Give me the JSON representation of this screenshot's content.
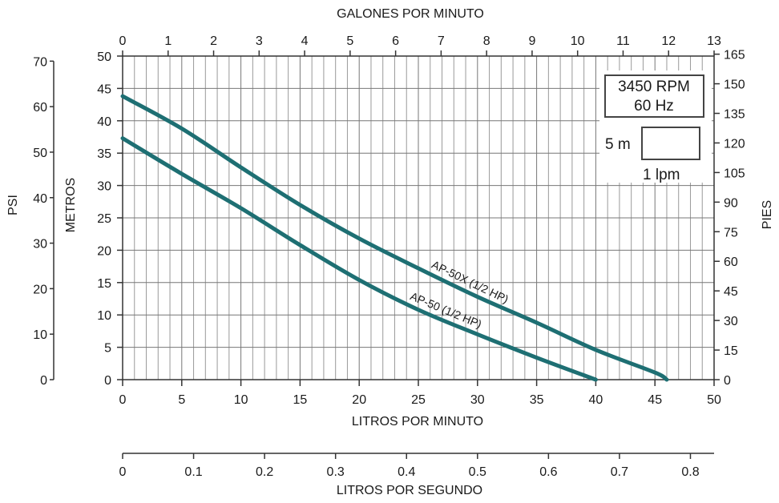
{
  "chart_data": {
    "type": "line",
    "title": "",
    "x_axes": {
      "bottom": {
        "label": "LITROS POR MINUTO",
        "range": [
          0,
          50
        ],
        "ticks": [
          "0",
          "5",
          "10",
          "15",
          "20",
          "25",
          "30",
          "35",
          "40",
          "45",
          "50"
        ]
      },
      "top": {
        "label": "GALONES POR MINUTO",
        "range": [
          0,
          13
        ],
        "ticks": [
          "0",
          "1",
          "2",
          "3",
          "4",
          "5",
          "6",
          "7",
          "8",
          "9",
          "10",
          "11",
          "12",
          "13"
        ]
      },
      "extra_bottom": {
        "label": "LITROS POR SEGUNDO",
        "range": [
          0,
          0.8
        ],
        "ticks": [
          "0",
          "0.1",
          "0.2",
          "0.3",
          "0.4",
          "0.5",
          "0.6",
          "0.7",
          "0.8"
        ]
      }
    },
    "y_axes": {
      "metros": {
        "label": "METROS",
        "range": [
          0,
          50
        ],
        "ticks": [
          "0",
          "5",
          "10",
          "15",
          "20",
          "25",
          "30",
          "35",
          "40",
          "45",
          "50"
        ]
      },
      "psi": {
        "label": "PSI",
        "range": [
          0,
          70
        ],
        "ticks": [
          "0",
          "10",
          "20",
          "30",
          "40",
          "50",
          "60",
          "70"
        ]
      },
      "pies": {
        "label": "PIES",
        "range": [
          0,
          165
        ],
        "ticks": [
          "0",
          "15",
          "30",
          "45",
          "60",
          "75",
          "90",
          "105",
          "120",
          "135",
          "150",
          "165"
        ]
      }
    },
    "grid": true,
    "series": [
      {
        "name": "AP-50X (1/2 HP)",
        "color": "#1e6f73",
        "x": [
          0,
          5,
          10,
          15,
          20,
          25,
          30,
          35,
          40,
          45,
          46
        ],
        "y": [
          43.8,
          38.8,
          32.8,
          27.0,
          21.8,
          17.2,
          12.8,
          8.8,
          4.6,
          1.1,
          0
        ]
      },
      {
        "name": "AP-50 (1/2 HP)",
        "color": "#1e6f73",
        "x": [
          0,
          5,
          10,
          15,
          20,
          25,
          30,
          35,
          40
        ],
        "y": [
          37.3,
          31.8,
          26.5,
          20.8,
          15.4,
          10.8,
          7.0,
          3.4,
          0
        ]
      }
    ],
    "legend": {
      "speed": "3450 RPM",
      "frequency": "60 Hz",
      "box_height_label": "5 m",
      "box_width_label": "1 lpm"
    }
  }
}
